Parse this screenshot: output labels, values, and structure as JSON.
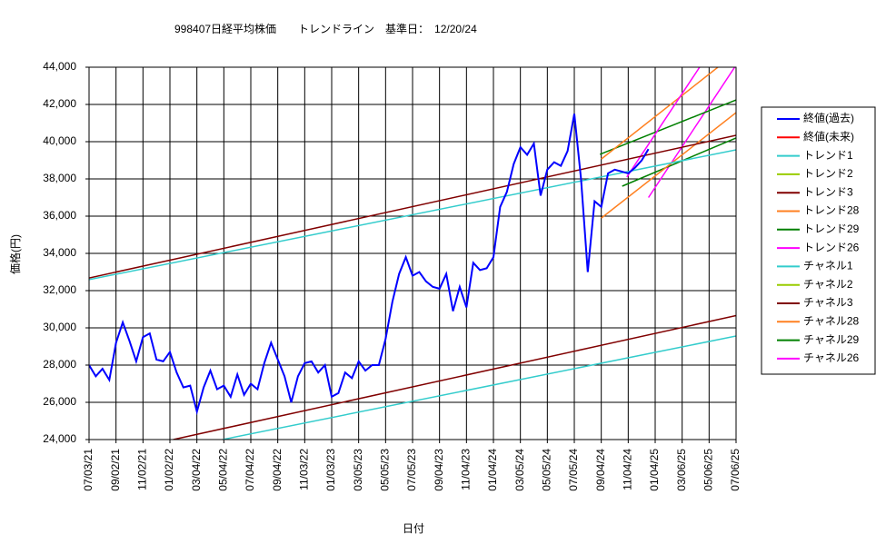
{
  "chart_data": {
    "type": "line",
    "title": "998407日経平均株価　　トレンドライン　基準日：　12/20/24",
    "x_label": "日付",
    "y_label": "価格(円)",
    "xlim": [
      0,
      96
    ],
    "xticks": [
      {
        "value": 0,
        "label": "07/03/21"
      },
      {
        "value": 4,
        "label": "09/02/21"
      },
      {
        "value": 8,
        "label": "11/02/21"
      },
      {
        "value": 12,
        "label": "01/02/22"
      },
      {
        "value": 16,
        "label": "03/04/22"
      },
      {
        "value": 20,
        "label": "05/04/22"
      },
      {
        "value": 24,
        "label": "07/04/22"
      },
      {
        "value": 28,
        "label": "09/04/22"
      },
      {
        "value": 32,
        "label": "11/03/22"
      },
      {
        "value": 36,
        "label": "01/03/23"
      },
      {
        "value": 40,
        "label": "03/05/23"
      },
      {
        "value": 44,
        "label": "05/05/23"
      },
      {
        "value": 48,
        "label": "07/05/23"
      },
      {
        "value": 52,
        "label": "09/04/23"
      },
      {
        "value": 56,
        "label": "11/04/23"
      },
      {
        "value": 60,
        "label": "01/04/24"
      },
      {
        "value": 64,
        "label": "03/05/24"
      },
      {
        "value": 68,
        "label": "05/05/24"
      },
      {
        "value": 72,
        "label": "07/05/24"
      },
      {
        "value": 76,
        "label": "09/04/24"
      },
      {
        "value": 80,
        "label": "11/04/24"
      },
      {
        "value": 84,
        "label": "01/04/25"
      },
      {
        "value": 88,
        "label": "03/06/25"
      },
      {
        "value": 92,
        "label": "05/06/25"
      },
      {
        "value": 96,
        "label": "07/06/25"
      }
    ],
    "ylim": [
      24000,
      44000
    ],
    "yticks": [
      {
        "value": 24000,
        "label": "24,000"
      },
      {
        "value": 26000,
        "label": "26,000"
      },
      {
        "value": 28000,
        "label": "28,000"
      },
      {
        "value": 30000,
        "label": "30,000"
      },
      {
        "value": 32000,
        "label": "32,000"
      },
      {
        "value": 34000,
        "label": "34,000"
      },
      {
        "value": 36000,
        "label": "36,000"
      },
      {
        "value": 38000,
        "label": "38,000"
      },
      {
        "value": 40000,
        "label": "40,000"
      },
      {
        "value": 42000,
        "label": "42,000"
      },
      {
        "value": 44000,
        "label": "44,000"
      }
    ],
    "grid": true,
    "legend": "right",
    "series": [
      {
        "name": "終値(過去)",
        "color": "#0000ff",
        "x": [
          0,
          1,
          2,
          3,
          4,
          5,
          6,
          7,
          8,
          9,
          10,
          11,
          12,
          13,
          14,
          15,
          16,
          17,
          18,
          19,
          20,
          21,
          22,
          23,
          24,
          25,
          26,
          27,
          28,
          29,
          30,
          31,
          32,
          33,
          34,
          35,
          36,
          37,
          38,
          39,
          40,
          41,
          42,
          43,
          44,
          45,
          46,
          47,
          48,
          49,
          50,
          51,
          52,
          53,
          54,
          55,
          56,
          57,
          58,
          59,
          60,
          61,
          62,
          63,
          64,
          65,
          66,
          67,
          68,
          69,
          70,
          71,
          72,
          73,
          74,
          75,
          76,
          77,
          78,
          79,
          80,
          81,
          82,
          83
        ],
        "values": [
          28000,
          27400,
          27800,
          27200,
          29200,
          30300,
          29300,
          28200,
          29500,
          29700,
          28300,
          28200,
          28700,
          27600,
          26800,
          26900,
          25500,
          26800,
          27700,
          26700,
          26900,
          26300,
          27500,
          26400,
          27000,
          26700,
          28100,
          29200,
          28300,
          27400,
          26000,
          27400,
          28100,
          28200,
          27600,
          28000,
          26300,
          26500,
          27600,
          27300,
          28200,
          27700,
          28000,
          28000,
          29400,
          31400,
          32900,
          33800,
          32800,
          33000,
          32500,
          32200,
          32100,
          32900,
          30900,
          32200,
          31100,
          33500,
          33100,
          33200,
          33800,
          36500,
          37300,
          38800,
          39700,
          39300,
          39900,
          37100,
          38500,
          38900,
          38700,
          39500,
          41500,
          38000,
          33000,
          36800,
          36500,
          38300,
          38500,
          38400,
          38300,
          38600,
          39000,
          39600
        ]
      },
      {
        "name": "終値(未来)",
        "color": "#ff0000",
        "x": [],
        "values": []
      },
      {
        "name": "トレンド1",
        "color": "#33cccc",
        "x": [
          0,
          96
        ],
        "values": [
          32590,
          39560
        ]
      },
      {
        "name": "トレンド2",
        "color": "#99cc00",
        "x": [],
        "values": []
      },
      {
        "name": "トレンド3",
        "color": "#800000",
        "x": [
          0,
          96
        ],
        "values": [
          32680,
          40340
        ]
      },
      {
        "name": "トレンド28",
        "color": "#ff8020",
        "x": [
          76,
          96
        ],
        "values": [
          35900,
          41560
        ]
      },
      {
        "name": "トレンド29",
        "color": "#008000",
        "x": [
          79.1,
          96
        ],
        "values": [
          37610,
          40200
        ]
      },
      {
        "name": "トレンド26",
        "color": "#ff00ff",
        "x": [
          79.8,
          90.6
        ],
        "values": [
          38100,
          44000
        ]
      },
      {
        "name": "チャネル1",
        "color": "#33cccc",
        "x": [
          19.8,
          96
        ],
        "values": [
          24000,
          29560
        ]
      },
      {
        "name": "チャネル2",
        "color": "#99cc00",
        "x": [],
        "values": []
      },
      {
        "name": "チャネル3",
        "color": "#800000",
        "x": [
          12.5,
          96
        ],
        "values": [
          24000,
          30660
        ]
      },
      {
        "name": "チャネル28",
        "color": "#ff8020",
        "x": [
          76,
          93.3
        ],
        "values": [
          39070,
          44000
        ]
      },
      {
        "name": "チャネル29",
        "color": "#008000",
        "x": [
          75.8,
          96
        ],
        "values": [
          39320,
          42240
        ]
      },
      {
        "name": "チャネル26",
        "color": "#ff00ff",
        "x": [
          83,
          95.8
        ],
        "values": [
          37000,
          44000
        ]
      }
    ]
  }
}
